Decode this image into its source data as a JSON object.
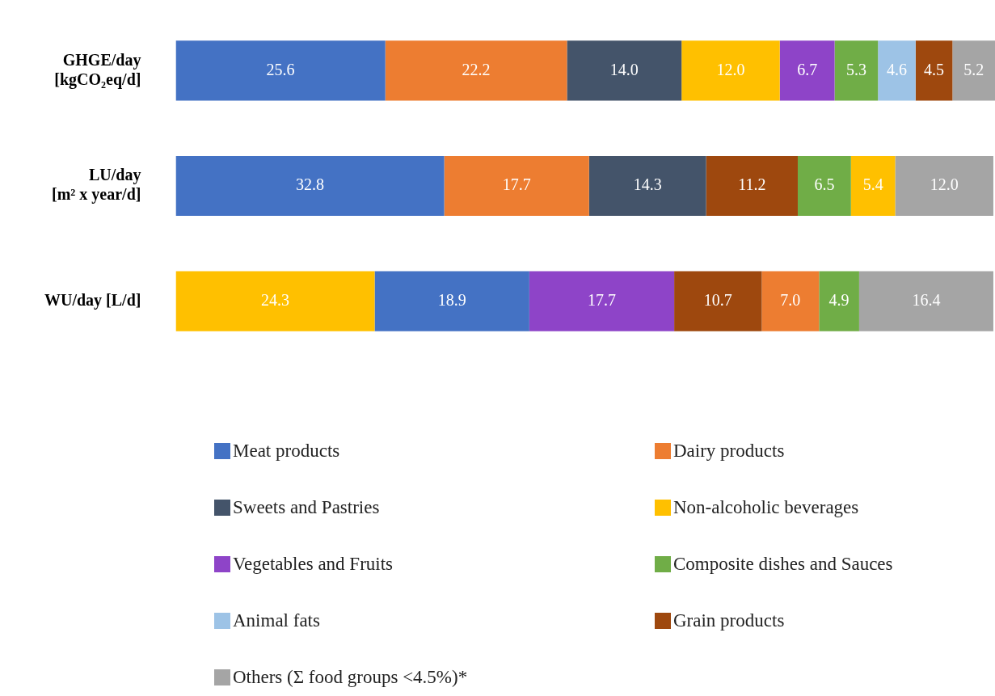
{
  "chart_data": {
    "type": "bar",
    "orientation": "horizontal",
    "stacked": true,
    "categories": [
      "GHGE/day [kgCO₂eq/d]",
      "LU/day [m² x year/d]",
      "WU/day [L/d]"
    ],
    "tick_labels": "y",
    "legend": "bottom",
    "series": [
      {
        "color": "#ffc000",
        "values": [
          null,
          null,
          24.3
        ],
        "value_labels": [
          null,
          null,
          "24.3"
        ]
      },
      {
        "name": "Meat products",
        "color": "#4472c4",
        "values": [
          25.6,
          32.8,
          18.9
        ],
        "value_labels": [
          "25.6",
          "32.8",
          "18.9"
        ]
      },
      {
        "name": "Dairy products",
        "color": "#ed7d31",
        "values": [
          22.2,
          17.7,
          null
        ],
        "value_labels": [
          "22.2",
          "17.7",
          null
        ]
      },
      {
        "name": "Sweets and Pastries",
        "color": "#44546a",
        "values": [
          14.0,
          14.3,
          null
        ],
        "value_labels": [
          "14.0",
          "14.3",
          null
        ]
      },
      {
        "name": "Non-alcoholic beverages",
        "color": "#ffc000",
        "values": [
          12.0,
          null,
          null
        ],
        "value_labels": [
          "12.0",
          null,
          null
        ]
      },
      {
        "name": "Vegetables and Fruits",
        "color": "#8e44c8",
        "values": [
          6.7,
          null,
          17.7
        ],
        "value_labels": [
          "6.7",
          null,
          "17.7"
        ]
      },
      {
        "color": "#9e480e",
        "values": [
          null,
          11.2,
          10.7
        ],
        "value_labels": [
          null,
          "11.2",
          "10.7"
        ]
      },
      {
        "color": "#ed7d31",
        "values": [
          null,
          null,
          7.0
        ],
        "value_labels": [
          null,
          null,
          "7.0"
        ]
      },
      {
        "name": "Composite dishes and Sauces",
        "color": "#70ad47",
        "values": [
          5.3,
          6.5,
          4.9
        ],
        "value_labels": [
          "5.3",
          "6.5",
          "4.9"
        ]
      },
      {
        "color": "#ffc000",
        "values": [
          null,
          5.4,
          null
        ],
        "value_labels": [
          null,
          "5.4",
          null
        ]
      },
      {
        "name": "Animal fats",
        "color": "#9dc3e6",
        "values": [
          4.6,
          null,
          null
        ],
        "value_labels": [
          "4.6",
          null,
          null
        ]
      },
      {
        "name": "Grain products",
        "color": "#9e480e",
        "values": [
          4.5,
          null,
          null
        ],
        "value_labels": [
          "4.5",
          null,
          null
        ]
      },
      {
        "name": "Others (Σ food groups <4.5%)*",
        "color": "#a5a5a5",
        "values": [
          5.2,
          12.0,
          16.4
        ],
        "value_labels": [
          "5.2",
          "12.0",
          "16.4"
        ]
      }
    ]
  }
}
